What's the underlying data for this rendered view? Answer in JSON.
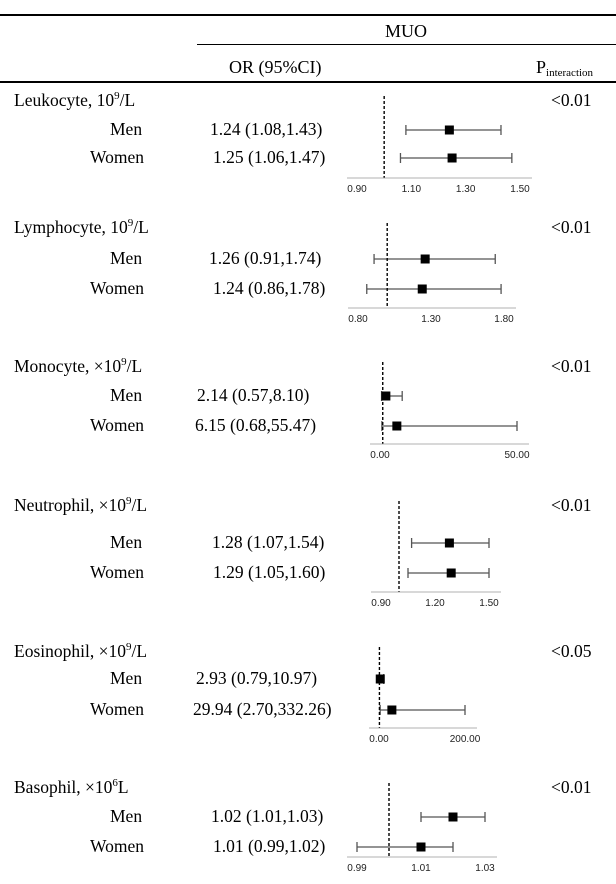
{
  "header": {
    "group": "MUO",
    "or_col": "OR (95%CI)",
    "p_main": "P",
    "p_sub": "interaction"
  },
  "chart_data": {
    "type": "forest",
    "panels": [
      {
        "label": "Leukocyte, 10",
        "label_sup": "9",
        "label_tail": "/L",
        "p_interaction": "<0.01",
        "ref": 1.0,
        "xlim": [
          0.9,
          1.5
        ],
        "ticks": [
          0.9,
          1.1,
          1.3,
          1.5
        ],
        "tick_labels": [
          "0.90",
          "1.10",
          "1.30",
          "1.50"
        ],
        "rows": [
          {
            "group": "Men",
            "or_text": "1.24 (1.08,1.43)",
            "or": 1.24,
            "lo": 1.08,
            "hi": 1.43
          },
          {
            "group": "Women",
            "or_text": "1.25 (1.06,1.47)",
            "or": 1.25,
            "lo": 1.06,
            "hi": 1.47
          }
        ]
      },
      {
        "label": "Lymphocyte, 10",
        "label_sup": "9",
        "label_tail": "/L",
        "p_interaction": "<0.01",
        "ref": 1.0,
        "xlim": [
          0.8,
          1.8
        ],
        "ticks": [
          0.8,
          1.3,
          1.8
        ],
        "tick_labels": [
          "0.80",
          "1.30",
          "1.80"
        ],
        "rows": [
          {
            "group": "Men",
            "or_text": "1.26 (0.91,1.74)",
            "or": 1.26,
            "lo": 0.91,
            "hi": 1.74
          },
          {
            "group": "Women",
            "or_text": "1.24 (0.86,1.78)",
            "or": 1.24,
            "lo": 0.86,
            "hi": 1.78
          }
        ]
      },
      {
        "label": "Monocyte, ×10",
        "label_sup": "9",
        "label_tail": "/L",
        "p_interaction": "<0.01",
        "ref": 1.0,
        "xlim": [
          0,
          50
        ],
        "ticks": [
          0,
          50
        ],
        "tick_labels": [
          "0.00",
          "50.00"
        ],
        "rows": [
          {
            "group": "Men",
            "or_text": "2.14  (0.57,8.10)",
            "or": 2.14,
            "lo": 0.57,
            "hi": 8.1
          },
          {
            "group": "Women",
            "or_text": "6.15 (0.68,55.47)",
            "or": 6.15,
            "lo": 0.68,
            "hi": 55.47
          }
        ]
      },
      {
        "label": "Neutrophil, ×10",
        "label_sup": "9",
        "label_tail": "/L",
        "p_interaction": "<0.01",
        "ref": 1.0,
        "xlim": [
          0.9,
          1.5
        ],
        "ticks": [
          0.9,
          1.2,
          1.5
        ],
        "tick_labels": [
          "0.90",
          "1.20",
          "1.50"
        ],
        "rows": [
          {
            "group": "Men",
            "or_text": "1.28 (1.07,1.54)",
            "or": 1.28,
            "lo": 1.07,
            "hi": 1.54
          },
          {
            "group": "Women",
            "or_text": "1.29 (1.05,1.60)",
            "or": 1.29,
            "lo": 1.05,
            "hi": 1.6
          }
        ]
      },
      {
        "label": "Eosinophil, ×10",
        "label_sup": "9",
        "label_tail": "/L",
        "p_interaction": "<0.05",
        "ref": 1.0,
        "xlim": [
          0,
          200
        ],
        "ticks": [
          0,
          200
        ],
        "tick_labels": [
          "0.00",
          "200.00"
        ],
        "rows": [
          {
            "group": "Men",
            "or_text": "2.93 (0.79,10.97)",
            "or": 2.93,
            "lo": 0.79,
            "hi": 10.97
          },
          {
            "group": "Women",
            "or_text": "29.94 (2.70,332.26)",
            "or": 29.94,
            "lo": 2.7,
            "hi": 332.26
          }
        ]
      },
      {
        "label": "Basophil, ×10",
        "label_sup": "6",
        "label_tail": "L",
        "p_interaction": "<0.01",
        "ref": 1.0,
        "xlim": [
          0.99,
          1.03
        ],
        "ticks": [
          0.99,
          1.01,
          1.03
        ],
        "tick_labels": [
          "0.99",
          "1.01",
          "1.03"
        ],
        "rows": [
          {
            "group": "Men",
            "or_text": "1.02 (1.01,1.03)",
            "or": 1.02,
            "lo": 1.01,
            "hi": 1.03
          },
          {
            "group": "Women",
            "or_text": "1.01 (0.99,1.02)",
            "or": 1.01,
            "lo": 0.99,
            "hi": 1.02
          }
        ]
      }
    ]
  }
}
